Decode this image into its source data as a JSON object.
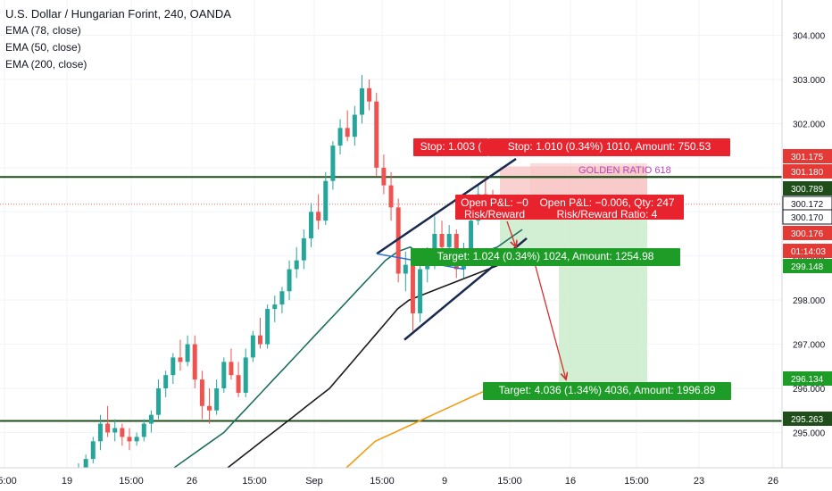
{
  "header": {
    "title": "U.S. Dollar / Hungarian Forint, 240, OANDA",
    "indicators": [
      "EMA (78, close)",
      "EMA (50, close)",
      "EMA (200, close)"
    ]
  },
  "colors": {
    "up": "#26a69a",
    "down": "#ef5350",
    "ema78": "#1f6f5e",
    "ema200": "#f39c12",
    "ema50": "#1b1b1b",
    "channel": "#1a2a4f",
    "stop_fill": "#f7c5c5",
    "target_fill": "#c8ebc8",
    "label_red": "#e8232d",
    "label_green": "#1e9c28",
    "hline": "#1f4e1a",
    "arrow": "#d32f2f",
    "price_dotted": "#e57373",
    "golden_ratio_text": "#b546b5"
  },
  "chart_data": {
    "type": "candlestick",
    "y_axis": {
      "range": [
        294.2,
        304.8
      ],
      "ticks": [
        "304.000",
        "303.000",
        "302.000",
        "301.000",
        "300.000",
        "299.000",
        "298.000",
        "297.000",
        "296.000",
        "295.000"
      ]
    },
    "x_axis": {
      "ticks": [
        "15:00",
        "19",
        "15:00",
        "26",
        "15:00",
        "Sep",
        "15:00",
        "9",
        "15:00",
        "16",
        "15:00",
        "23",
        "26"
      ]
    },
    "price_labels": [
      {
        "text": "301.175",
        "color": "#e53935"
      },
      {
        "text": "301.180",
        "color": "#e53935"
      },
      {
        "text": "300.789",
        "color": "#1f4e1a"
      },
      {
        "text": "300.172",
        "color": "#131722"
      },
      {
        "text": "300.170",
        "color": "#131722"
      },
      {
        "text": "300.176",
        "color": "#e53935"
      },
      {
        "text": "01:14:03",
        "color": "#e53935"
      },
      {
        "text": "299.148",
        "color": "#1e9c28"
      },
      {
        "text": "296.134",
        "color": "#1e9c28"
      },
      {
        "text": "295.263",
        "color": "#1f4e1a"
      }
    ],
    "horizontal_lines": [
      {
        "name": "golden-ratio-line",
        "price": 300.79,
        "label": "GOLDEN RATIO 618"
      },
      {
        "name": "support-line",
        "price": 295.263
      }
    ],
    "current_price": 300.172,
    "channel": {
      "upper": [
        {
          "x": "Sep 3 15:00",
          "y": 299.05
        },
        {
          "x": "Sep 11 15:00",
          "y": 301.2
        }
      ],
      "lower": [
        {
          "x": "Sep 4",
          "y": 297.1
        },
        {
          "x": "Sep 12",
          "y": 299.4
        }
      ]
    },
    "labels": {
      "stop": "Stop: 1.003 (",
      "stop2": "Stop: 1.010 (0.34%) 1010, Amount: 750.53",
      "pnl1": "Open P&L: −0",
      "rr1": "Risk/Reward",
      "pnl2": "Open P&L: −0.006, Qty: 247",
      "rr2": "Risk/Reward Ratio: 4",
      "target1": "Target: 1.024 (0.34%) 1024, Amount: 1254.98",
      "target2": "Target: 4.036 (1.34%) 4036, Amount: 1996.89"
    },
    "candles": [
      {
        "o": 294.0,
        "h": 294.3,
        "l": 293.8,
        "c": 294.1
      },
      {
        "o": 294.1,
        "h": 294.5,
        "l": 294.0,
        "c": 294.4
      },
      {
        "o": 294.4,
        "h": 294.9,
        "l": 294.3,
        "c": 294.8
      },
      {
        "o": 294.8,
        "h": 295.4,
        "l": 294.6,
        "c": 295.2
      },
      {
        "o": 295.2,
        "h": 295.6,
        "l": 294.9,
        "c": 295.0
      },
      {
        "o": 295.0,
        "h": 295.3,
        "l": 294.8,
        "c": 295.1
      },
      {
        "o": 295.1,
        "h": 295.2,
        "l": 294.7,
        "c": 294.9
      },
      {
        "o": 294.9,
        "h": 295.1,
        "l": 294.6,
        "c": 294.8
      },
      {
        "o": 294.8,
        "h": 295.0,
        "l": 294.7,
        "c": 294.9
      },
      {
        "o": 294.9,
        "h": 295.3,
        "l": 294.8,
        "c": 295.2
      },
      {
        "o": 295.2,
        "h": 295.5,
        "l": 295.0,
        "c": 295.4
      },
      {
        "o": 295.4,
        "h": 296.2,
        "l": 295.3,
        "c": 296.0
      },
      {
        "o": 296.0,
        "h": 296.4,
        "l": 295.8,
        "c": 296.3
      },
      {
        "o": 296.3,
        "h": 296.8,
        "l": 296.1,
        "c": 296.7
      },
      {
        "o": 296.7,
        "h": 297.1,
        "l": 296.4,
        "c": 296.6
      },
      {
        "o": 296.6,
        "h": 297.2,
        "l": 296.5,
        "c": 297.0
      },
      {
        "o": 297.0,
        "h": 297.2,
        "l": 296.0,
        "c": 296.2
      },
      {
        "o": 296.2,
        "h": 296.4,
        "l": 295.3,
        "c": 295.6
      },
      {
        "o": 295.6,
        "h": 296.0,
        "l": 295.2,
        "c": 295.5
      },
      {
        "o": 295.5,
        "h": 296.2,
        "l": 295.4,
        "c": 296.0
      },
      {
        "o": 296.0,
        "h": 296.7,
        "l": 295.9,
        "c": 296.6
      },
      {
        "o": 296.6,
        "h": 296.9,
        "l": 296.2,
        "c": 296.3
      },
      {
        "o": 296.3,
        "h": 296.6,
        "l": 295.8,
        "c": 295.9
      },
      {
        "o": 295.9,
        "h": 296.9,
        "l": 295.8,
        "c": 296.7
      },
      {
        "o": 296.7,
        "h": 297.3,
        "l": 296.6,
        "c": 297.2
      },
      {
        "o": 297.2,
        "h": 297.6,
        "l": 296.9,
        "c": 297.0
      },
      {
        "o": 297.0,
        "h": 297.9,
        "l": 296.9,
        "c": 297.8
      },
      {
        "o": 297.8,
        "h": 298.1,
        "l": 297.5,
        "c": 297.9
      },
      {
        "o": 297.9,
        "h": 298.3,
        "l": 297.7,
        "c": 298.2
      },
      {
        "o": 298.2,
        "h": 298.9,
        "l": 298.0,
        "c": 298.7
      },
      {
        "o": 298.7,
        "h": 299.2,
        "l": 298.5,
        "c": 298.9
      },
      {
        "o": 298.9,
        "h": 299.6,
        "l": 298.7,
        "c": 299.4
      },
      {
        "o": 299.4,
        "h": 300.2,
        "l": 299.2,
        "c": 300.0
      },
      {
        "o": 300.0,
        "h": 300.4,
        "l": 299.6,
        "c": 299.8
      },
      {
        "o": 299.8,
        "h": 300.9,
        "l": 299.7,
        "c": 300.7
      },
      {
        "o": 300.7,
        "h": 301.6,
        "l": 300.5,
        "c": 301.5
      },
      {
        "o": 301.5,
        "h": 302.1,
        "l": 301.3,
        "c": 301.9
      },
      {
        "o": 301.9,
        "h": 302.3,
        "l": 301.6,
        "c": 301.7
      },
      {
        "o": 301.7,
        "h": 302.4,
        "l": 301.5,
        "c": 302.2
      },
      {
        "o": 302.2,
        "h": 303.1,
        "l": 302.0,
        "c": 302.8
      },
      {
        "o": 302.8,
        "h": 303.0,
        "l": 302.3,
        "c": 302.5
      },
      {
        "o": 302.5,
        "h": 302.7,
        "l": 300.8,
        "c": 301.0
      },
      {
        "o": 301.0,
        "h": 301.3,
        "l": 300.4,
        "c": 300.6
      },
      {
        "o": 300.6,
        "h": 300.9,
        "l": 299.8,
        "c": 300.1
      },
      {
        "o": 300.1,
        "h": 300.3,
        "l": 298.4,
        "c": 298.6
      },
      {
        "o": 298.6,
        "h": 299.1,
        "l": 298.2,
        "c": 298.8
      },
      {
        "o": 298.8,
        "h": 299.0,
        "l": 297.3,
        "c": 297.7
      },
      {
        "o": 297.7,
        "h": 298.9,
        "l": 297.5,
        "c": 298.7
      },
      {
        "o": 298.7,
        "h": 299.2,
        "l": 298.4,
        "c": 299.0
      },
      {
        "o": 299.0,
        "h": 299.9,
        "l": 298.7,
        "c": 299.5
      },
      {
        "o": 299.5,
        "h": 299.8,
        "l": 299.0,
        "c": 299.2
      },
      {
        "o": 299.2,
        "h": 299.7,
        "l": 298.9,
        "c": 299.5
      },
      {
        "o": 299.5,
        "h": 299.6,
        "l": 298.5,
        "c": 298.7
      },
      {
        "o": 298.7,
        "h": 299.3,
        "l": 298.5,
        "c": 299.1
      },
      {
        "o": 299.1,
        "h": 300.1,
        "l": 299.0,
        "c": 299.8
      },
      {
        "o": 299.8,
        "h": 300.6,
        "l": 299.7,
        "c": 300.4
      },
      {
        "o": 300.4,
        "h": 300.8,
        "l": 300.0,
        "c": 300.2
      },
      {
        "o": 300.2,
        "h": 300.5,
        "l": 300.0,
        "c": 300.17
      }
    ],
    "ema78": [
      294.2,
      294.4,
      294.6,
      294.8,
      295.0,
      295.3,
      295.6,
      295.9,
      296.2,
      296.5,
      296.8,
      297.1,
      297.4,
      297.7,
      298.0,
      298.3,
      298.6,
      298.9,
      299.1,
      299.2,
      299.0,
      298.8,
      298.8,
      298.9,
      299.0,
      299.1,
      299.2,
      299.4,
      299.6
    ],
    "ema50": [
      294.2,
      294.4,
      294.6,
      294.8,
      295.0,
      295.2,
      295.4,
      295.6,
      295.8,
      296.0,
      296.3,
      296.6,
      296.9,
      297.2,
      297.5,
      297.8,
      298.0,
      298.1,
      298.2,
      298.3,
      298.4,
      298.5,
      298.6,
      298.7,
      298.8,
      298.9,
      299.0
    ],
    "ema200": [
      294.2,
      294.4,
      294.6,
      294.8,
      294.9,
      295.0,
      295.1,
      295.2,
      295.3,
      295.4,
      295.5,
      295.6,
      295.7,
      295.8,
      295.9,
      296.0,
      296.1
    ]
  }
}
